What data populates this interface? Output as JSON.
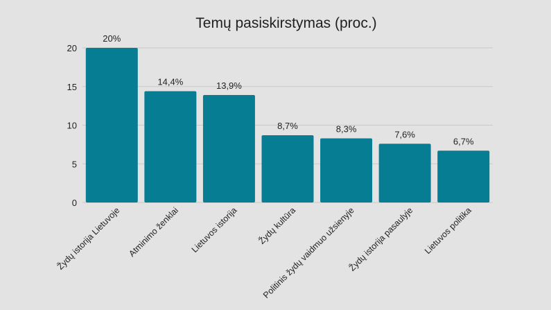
{
  "chart_data": {
    "type": "bar",
    "title": "Temų pasiskirstymas (proc.)",
    "categories": [
      "Žydų istorija Lietuvoje",
      "Atminimo ženklai",
      "Lietuvos istorija",
      "Žydų kultūra",
      "Politinis žydų vaidmuo užsienyje",
      "Žydų istorija pasaulyje",
      "Lietuvos politika"
    ],
    "values": [
      20,
      14.4,
      13.9,
      8.7,
      8.3,
      7.6,
      6.7
    ],
    "data_labels": [
      "20%",
      "14,4%",
      "13,9%",
      "8,7%",
      "8,3%",
      "7,6%",
      "6,7%"
    ],
    "yticks": [
      0,
      5,
      10,
      15,
      20
    ],
    "ylim": [
      0,
      20
    ],
    "xlabel": "",
    "ylabel": "",
    "grid": true,
    "legend": "none",
    "bar_color": "#077d94",
    "background_color": "#e3e3e3"
  }
}
